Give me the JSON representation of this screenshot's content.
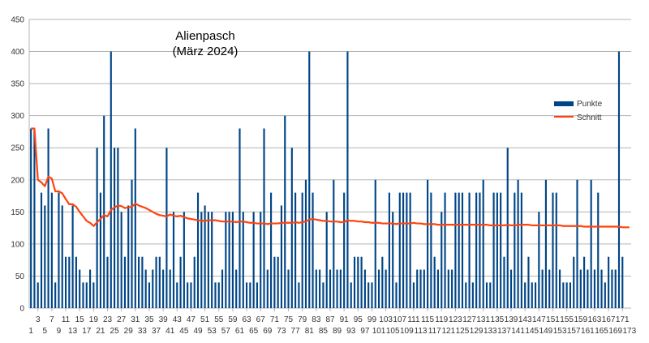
{
  "chart_data": {
    "type": "bar+line",
    "title": "Alienpasch",
    "subtitle": "(März 2024)",
    "xlabel": "",
    "ylabel": "",
    "ylim": [
      0,
      450
    ],
    "yticks": [
      0,
      50,
      100,
      150,
      200,
      250,
      300,
      350,
      400,
      450
    ],
    "grid": "horizontal",
    "legend_position": "right",
    "categories_first": 1,
    "categories_last": 173,
    "x_ticks_lower": [
      1,
      5,
      9,
      13,
      17,
      21,
      25,
      29,
      33,
      37,
      41,
      45,
      49,
      53,
      57,
      61,
      65,
      69,
      73,
      77,
      81,
      85,
      89,
      93,
      97,
      101,
      105,
      109,
      113,
      117,
      121,
      125,
      129,
      133,
      137,
      141,
      145,
      149,
      153,
      157,
      161,
      165,
      169,
      173
    ],
    "x_ticks_upper": [
      3,
      7,
      11,
      15,
      19,
      23,
      27,
      31,
      35,
      39,
      43,
      47,
      51,
      55,
      59,
      63,
      67,
      71,
      75,
      79,
      83,
      87,
      91,
      95,
      99,
      103,
      107,
      111,
      115,
      119,
      123,
      127,
      131,
      135,
      139,
      143,
      147,
      151,
      155,
      159,
      163,
      167,
      171
    ],
    "series": [
      {
        "name": "Punkte",
        "kind": "bar",
        "color": "#004586",
        "values": [
          280,
          280,
          40,
          180,
          160,
          280,
          180,
          40,
          180,
          160,
          80,
          80,
          160,
          80,
          60,
          40,
          40,
          60,
          40,
          250,
          180,
          300,
          80,
          400,
          250,
          250,
          150,
          80,
          160,
          200,
          280,
          80,
          80,
          60,
          40,
          60,
          80,
          80,
          60,
          250,
          60,
          150,
          40,
          80,
          150,
          40,
          40,
          80,
          180,
          150,
          160,
          150,
          150,
          40,
          40,
          60,
          150,
          150,
          150,
          60,
          280,
          150,
          40,
          40,
          150,
          40,
          150,
          280,
          60,
          180,
          80,
          80,
          160,
          300,
          60,
          250,
          180,
          40,
          180,
          200,
          400,
          180,
          60,
          60,
          40,
          150,
          60,
          200,
          60,
          60,
          180,
          400,
          40,
          80,
          80,
          80,
          60,
          40,
          40,
          200,
          60,
          80,
          60,
          180,
          150,
          40,
          180,
          180,
          180,
          180,
          40,
          60,
          60,
          60,
          200,
          180,
          80,
          60,
          150,
          180,
          60,
          60,
          180,
          180,
          180,
          40,
          180,
          40,
          180,
          180,
          200,
          40,
          40,
          180,
          180,
          180,
          80,
          250,
          60,
          180,
          200,
          180,
          40,
          80,
          40,
          40,
          150,
          60,
          200,
          60,
          180,
          180,
          60,
          40,
          40,
          40,
          80,
          200,
          60,
          80,
          60,
          200,
          60,
          180,
          60,
          40,
          80,
          60,
          60,
          400,
          80
        ],
        "legend_label": "Punkte"
      },
      {
        "name": "Schnitt",
        "kind": "line",
        "color": "#ff420e",
        "values": [
          280,
          280,
          200,
          196,
          190,
          205,
          202,
          182,
          182,
          179,
          170,
          162,
          162,
          158,
          150,
          143,
          136,
          133,
          128,
          134,
          139,
          145,
          143,
          153,
          157,
          160,
          159,
          156,
          157,
          158,
          163,
          160,
          158,
          156,
          153,
          150,
          147,
          145,
          144,
          143,
          146,
          144,
          143,
          144,
          142,
          140,
          139,
          138,
          137,
          136,
          136,
          137,
          137,
          137,
          136,
          135,
          135,
          135,
          135,
          134,
          135,
          135,
          134,
          133,
          133,
          132,
          132,
          132,
          131,
          132,
          132,
          132,
          133,
          133,
          133,
          133,
          134,
          133,
          134,
          135,
          138,
          139,
          138,
          137,
          136,
          136,
          135,
          135,
          135,
          134,
          134,
          137,
          136,
          136,
          135,
          135,
          134,
          134,
          133,
          133,
          133,
          132,
          132,
          132,
          132,
          131,
          132,
          132,
          132,
          132,
          133,
          132,
          132,
          131,
          131,
          131,
          131,
          130,
          130,
          130,
          130,
          130,
          130,
          130,
          130,
          130,
          130,
          130,
          130,
          130,
          130,
          130,
          129,
          129,
          129,
          129,
          129,
          130,
          129,
          129,
          130,
          130,
          130,
          130,
          129,
          129,
          129,
          129,
          129,
          129,
          129,
          129,
          129,
          128,
          128,
          128,
          128,
          128,
          128,
          127,
          127,
          127,
          127,
          127,
          127,
          127,
          127,
          127,
          127,
          127,
          126,
          126,
          126
        ],
        "legend_label": "Schnitt"
      }
    ]
  }
}
